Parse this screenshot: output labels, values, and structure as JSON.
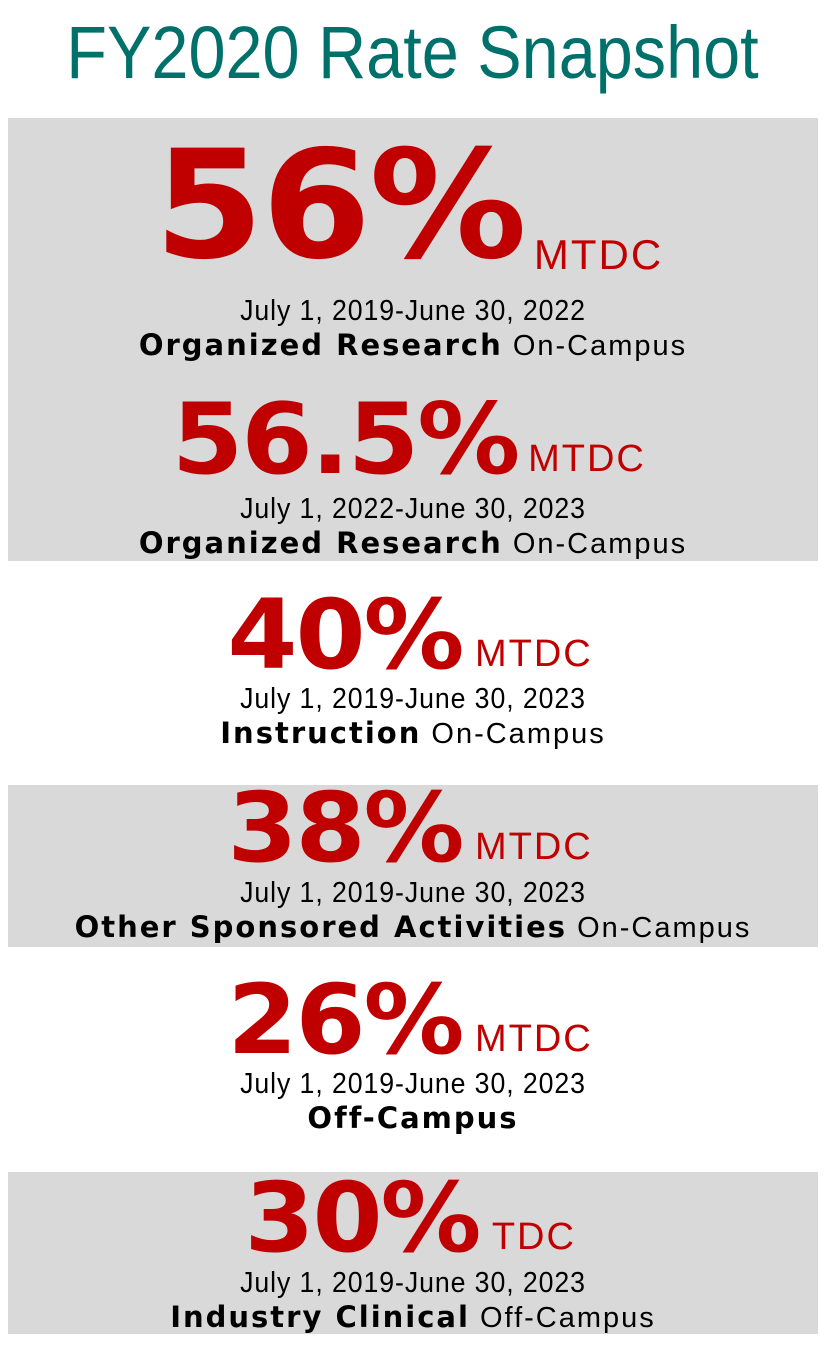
{
  "title": "FY2020 Rate Snapshot",
  "colors": {
    "title": "#00706b",
    "rate": "#c00000",
    "panel": "#d9d9d9"
  },
  "rates": [
    {
      "rate": "56%",
      "basis": "MTDC",
      "dates": "July 1, 2019-June 30, 2022",
      "category_bold": "Organized Research",
      "category_rest": " On-Campus"
    },
    {
      "rate": "56.5%",
      "basis": "MTDC",
      "dates": "July 1, 2022-June 30, 2023",
      "category_bold": "Organized Research",
      "category_rest": " On-Campus"
    },
    {
      "rate": "40%",
      "basis": "MTDC",
      "dates": "July 1, 2019-June 30, 2023",
      "category_bold": "Instruction",
      "category_rest": " On-Campus"
    },
    {
      "rate": "38%",
      "basis": "MTDC",
      "dates": "July 1, 2019-June 30, 2023",
      "category_bold": "Other Sponsored Activities",
      "category_rest": " On-Campus"
    },
    {
      "rate": "26%",
      "basis": "MTDC",
      "dates": "July 1, 2019-June 30, 2023",
      "category_bold": "Off-Campus",
      "category_rest": ""
    },
    {
      "rate": "30%",
      "basis": "TDC",
      "dates": "July 1, 2019-June 30, 2023",
      "category_bold": "Industry Clinical",
      "category_rest": " Off-Campus"
    }
  ]
}
